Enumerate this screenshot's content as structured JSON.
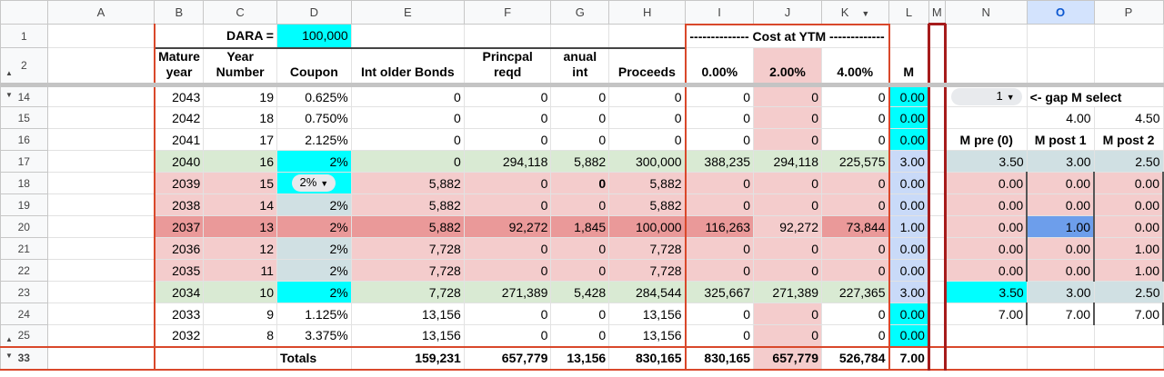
{
  "columns": [
    "A",
    "B",
    "C",
    "D",
    "E",
    "F",
    "G",
    "H",
    "I",
    "J",
    "K",
    "L",
    "M",
    "N",
    "O",
    "P"
  ],
  "selected_column": "O",
  "filter_column": "K",
  "row1": {
    "dara_label": "DARA =",
    "dara_value": "100,000",
    "cost_header": "-------------- Cost at YTM -------------"
  },
  "row2_headers": {
    "B": "Mature year",
    "C": "Year Number",
    "D": "Coupon",
    "E": "Int older Bonds",
    "F": "Princpal reqd",
    "G": "anual int",
    "H": "Proceeds",
    "I": "0.00%",
    "J": "2.00%",
    "K": "4.00%",
    "L": "M"
  },
  "rows": [
    {
      "num": "14",
      "cells": [
        "",
        "2043",
        "19",
        "0.625%",
        "0",
        "0",
        "0",
        "0",
        "0",
        "0",
        "0",
        "0.00",
        "",
        "1",
        "<- gap M select",
        ""
      ]
    },
    {
      "num": "15",
      "cells": [
        "",
        "2042",
        "18",
        "0.750%",
        "0",
        "0",
        "0",
        "0",
        "0",
        "0",
        "0",
        "0.00",
        "",
        "",
        "4.00",
        "4.50"
      ]
    },
    {
      "num": "16",
      "cells": [
        "",
        "2041",
        "17",
        "2.125%",
        "0",
        "0",
        "0",
        "0",
        "0",
        "0",
        "0",
        "0.00",
        "",
        "M pre (0)",
        "M post 1",
        "M post 2"
      ]
    },
    {
      "num": "17",
      "cells": [
        "",
        "2040",
        "16",
        "2%",
        "0",
        "294,118",
        "5,882",
        "300,000",
        "388,235",
        "294,118",
        "225,575",
        "3.00",
        "",
        "3.50",
        "3.00",
        "2.50"
      ]
    },
    {
      "num": "18",
      "cells": [
        "",
        "2039",
        "15",
        "2%",
        "5,882",
        "0",
        "0",
        "5,882",
        "0",
        "0",
        "0",
        "0.00",
        "",
        "0.00",
        "0.00",
        "0.00"
      ]
    },
    {
      "num": "19",
      "cells": [
        "",
        "2038",
        "14",
        "2%",
        "5,882",
        "0",
        "0",
        "5,882",
        "0",
        "0",
        "0",
        "0.00",
        "",
        "0.00",
        "0.00",
        "0.00"
      ]
    },
    {
      "num": "20",
      "cells": [
        "",
        "2037",
        "13",
        "2%",
        "5,882",
        "92,272",
        "1,845",
        "100,000",
        "116,263",
        "92,272",
        "73,844",
        "1.00",
        "",
        "0.00",
        "1.00",
        "0.00"
      ]
    },
    {
      "num": "21",
      "cells": [
        "",
        "2036",
        "12",
        "2%",
        "7,728",
        "0",
        "0",
        "7,728",
        "0",
        "0",
        "0",
        "0.00",
        "",
        "0.00",
        "0.00",
        "1.00"
      ]
    },
    {
      "num": "22",
      "cells": [
        "",
        "2035",
        "11",
        "2%",
        "7,728",
        "0",
        "0",
        "7,728",
        "0",
        "0",
        "0",
        "0.00",
        "",
        "0.00",
        "0.00",
        "1.00"
      ]
    },
    {
      "num": "23",
      "cells": [
        "",
        "2034",
        "10",
        "2%",
        "7,728",
        "271,389",
        "5,428",
        "284,544",
        "325,667",
        "271,389",
        "227,365",
        "3.00",
        "",
        "3.50",
        "3.00",
        "2.50"
      ]
    },
    {
      "num": "24",
      "cells": [
        "",
        "2033",
        "9",
        "1.125%",
        "13,156",
        "0",
        "0",
        "13,156",
        "0",
        "0",
        "0",
        "0.00",
        "",
        "7.00",
        "7.00",
        "7.00"
      ]
    },
    {
      "num": "25",
      "cells": [
        "",
        "2032",
        "8",
        "3.375%",
        "13,156",
        "0",
        "0",
        "13,156",
        "0",
        "0",
        "0",
        "0.00",
        "",
        "",
        "",
        ""
      ]
    },
    {
      "num": "33",
      "cells": [
        "",
        "",
        "",
        "Totals",
        "159,231",
        "657,779",
        "13,156",
        "830,165",
        "830,165",
        "657,779",
        "526,784",
        "7.00",
        "",
        "",
        "",
        ""
      ]
    }
  ],
  "colors": {
    "green": "#d9ead3",
    "pink": "#f4cccc",
    "dark_pink": "#ea9999",
    "cyan": "#00ffff",
    "grey_blue": "#d0e0e3",
    "light_blue": "#c9daf8",
    "blue": "#6d9eeb",
    "border_red": "#d9482b"
  }
}
